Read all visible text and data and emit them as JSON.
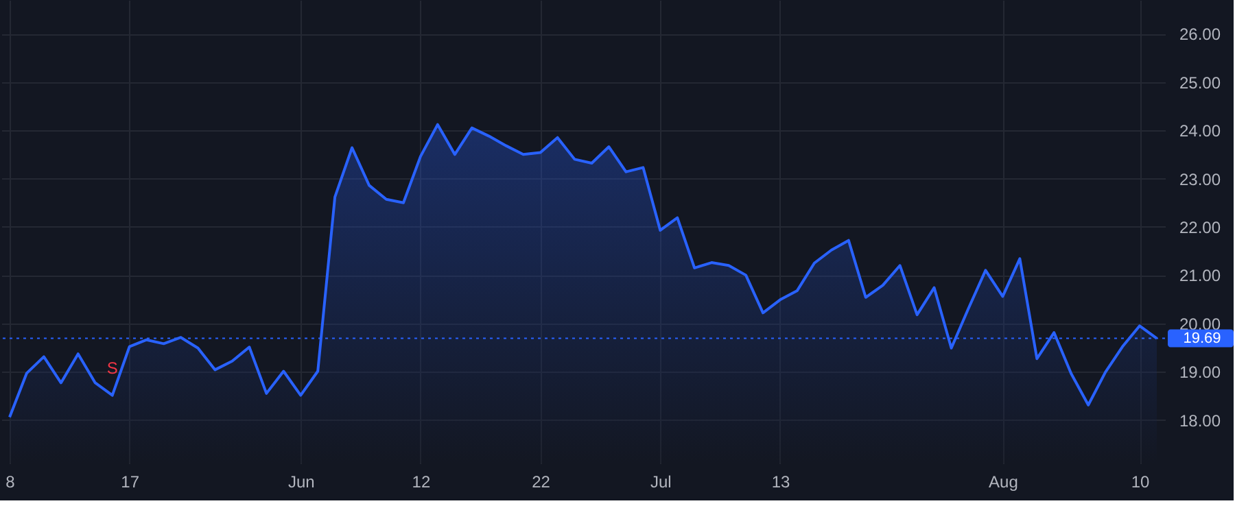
{
  "chart_data": {
    "type": "area",
    "categories": [
      "8",
      null,
      null,
      null,
      null,
      null,
      null,
      "17",
      null,
      null,
      null,
      null,
      null,
      null,
      null,
      null,
      null,
      "Jun",
      null,
      null,
      null,
      null,
      null,
      null,
      "12",
      null,
      null,
      null,
      null,
      null,
      null,
      "22",
      null,
      null,
      null,
      null,
      null,
      null,
      "Jul",
      null,
      null,
      null,
      null,
      null,
      null,
      "13",
      null,
      null,
      null,
      null,
      null,
      null,
      null,
      null,
      null,
      null,
      null,
      null,
      "Aug",
      null,
      null,
      null,
      null,
      null,
      null,
      null,
      "10",
      null
    ],
    "series": [
      {
        "color": "#2962ff",
        "values": [
          18.06,
          18.97,
          19.31,
          18.77,
          19.37,
          18.77,
          18.51,
          19.52,
          19.66,
          19.58,
          19.71,
          19.49,
          19.04,
          19.22,
          19.51,
          18.55,
          19.01,
          18.51,
          19.01,
          22.62,
          23.64,
          22.86,
          22.57,
          22.5,
          23.46,
          24.12,
          23.5,
          24.05,
          23.88,
          23.68,
          23.5,
          23.54,
          23.85,
          23.4,
          23.32,
          23.66,
          23.14,
          23.23,
          21.93,
          22.19,
          21.15,
          21.26,
          21.2,
          21.0,
          20.22,
          20.49,
          20.68,
          21.25,
          21.52,
          21.72,
          20.54,
          20.79,
          21.2,
          20.18,
          20.74,
          19.49,
          20.31,
          21.1,
          20.56,
          21.34,
          19.27,
          19.81,
          18.96,
          18.31,
          18.99,
          19.52,
          19.95,
          19.69
        ]
      }
    ],
    "ylim": [
      17.1,
      26.7
    ],
    "yticks": [
      {
        "value": 18,
        "label": "18.00"
      },
      {
        "value": 19,
        "label": "19.00"
      },
      {
        "value": 20,
        "label": "20.00"
      },
      {
        "value": 21,
        "label": "21.00"
      },
      {
        "value": 22,
        "label": "22.00"
      },
      {
        "value": 23,
        "label": "23.00"
      },
      {
        "value": 24,
        "label": "24.00"
      },
      {
        "value": 25,
        "label": "25.00"
      },
      {
        "value": 26,
        "label": "26.00"
      }
    ],
    "grid": true,
    "ref_lines": [
      {
        "axis": "y",
        "value": 19.69,
        "label": "19.69",
        "color": "#2962ff",
        "line_style": "dotted"
      }
    ],
    "annotations": [
      {
        "text": "S",
        "y": 18.51
      }
    ]
  }
}
